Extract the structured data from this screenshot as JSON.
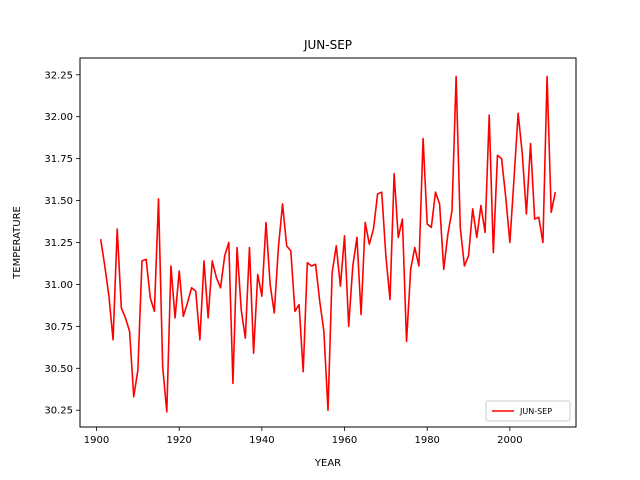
{
  "chart_data": {
    "type": "line",
    "title": "JUN-SEP",
    "xlabel": "YEAR",
    "ylabel": "TEMPERATURE",
    "xlim": [
      1896,
      2016
    ],
    "ylim": [
      30.15,
      32.35
    ],
    "xticks": [
      1900,
      1920,
      1940,
      1960,
      1980,
      2000
    ],
    "yticks": [
      30.25,
      30.5,
      30.75,
      31.0,
      31.25,
      31.5,
      31.75,
      32.0,
      32.25
    ],
    "ytick_labels": [
      "30.25",
      "30.50",
      "30.75",
      "31.00",
      "31.25",
      "31.50",
      "31.75",
      "32.00",
      "32.25"
    ],
    "grid": false,
    "legend_position": "lower-right",
    "series": [
      {
        "name": "JUN-SEP",
        "color": "#ff0000",
        "x": [
          1901,
          1902,
          1903,
          1904,
          1905,
          1906,
          1907,
          1908,
          1909,
          1910,
          1911,
          1912,
          1913,
          1914,
          1915,
          1916,
          1917,
          1918,
          1919,
          1920,
          1921,
          1922,
          1923,
          1924,
          1925,
          1926,
          1927,
          1928,
          1929,
          1930,
          1931,
          1932,
          1933,
          1934,
          1935,
          1936,
          1937,
          1938,
          1939,
          1940,
          1941,
          1942,
          1943,
          1944,
          1945,
          1946,
          1947,
          1948,
          1949,
          1950,
          1951,
          1952,
          1953,
          1954,
          1955,
          1956,
          1957,
          1958,
          1959,
          1960,
          1961,
          1962,
          1963,
          1964,
          1965,
          1966,
          1967,
          1968,
          1969,
          1970,
          1971,
          1972,
          1973,
          1974,
          1975,
          1976,
          1977,
          1978,
          1979,
          1980,
          1981,
          1982,
          1983,
          1984,
          1985,
          1986,
          1987,
          1988,
          1989,
          1990,
          1991,
          1992,
          1993,
          1994,
          1995,
          1996,
          1997,
          1998,
          1999,
          2000,
          2001,
          2002,
          2003,
          2004,
          2005,
          2006,
          2007,
          2008,
          2009,
          2010,
          2011
        ],
        "y": [
          31.27,
          31.11,
          30.93,
          30.67,
          31.33,
          30.86,
          30.8,
          30.72,
          30.33,
          30.49,
          31.14,
          31.15,
          30.92,
          30.84,
          31.51,
          30.51,
          30.24,
          31.11,
          30.8,
          31.08,
          30.81,
          30.89,
          30.98,
          30.96,
          30.67,
          31.14,
          30.8,
          31.14,
          31.04,
          30.98,
          31.17,
          31.25,
          30.41,
          31.22,
          30.85,
          30.68,
          31.22,
          30.59,
          31.06,
          30.93,
          31.37,
          31.0,
          30.83,
          31.22,
          31.48,
          31.23,
          31.2,
          30.84,
          30.88,
          30.48,
          31.13,
          31.11,
          31.12,
          30.9,
          30.72,
          30.25,
          31.07,
          31.23,
          30.99,
          31.29,
          30.75,
          31.11,
          31.28,
          30.82,
          31.37,
          31.24,
          31.33,
          31.54,
          31.55,
          31.17,
          30.91,
          31.66,
          31.28,
          31.39,
          30.66,
          31.09,
          31.22,
          31.11,
          31.87,
          31.36,
          31.34,
          31.55,
          31.48,
          31.09,
          31.3,
          31.44,
          32.24,
          31.34,
          31.11,
          31.17,
          31.45,
          31.28,
          31.47,
          31.31,
          32.01,
          31.19,
          31.77,
          31.75,
          31.52,
          31.25,
          31.63,
          32.02,
          31.78,
          31.42,
          31.84,
          31.39,
          31.4,
          31.25,
          32.24,
          31.43,
          31.55
        ]
      }
    ]
  }
}
